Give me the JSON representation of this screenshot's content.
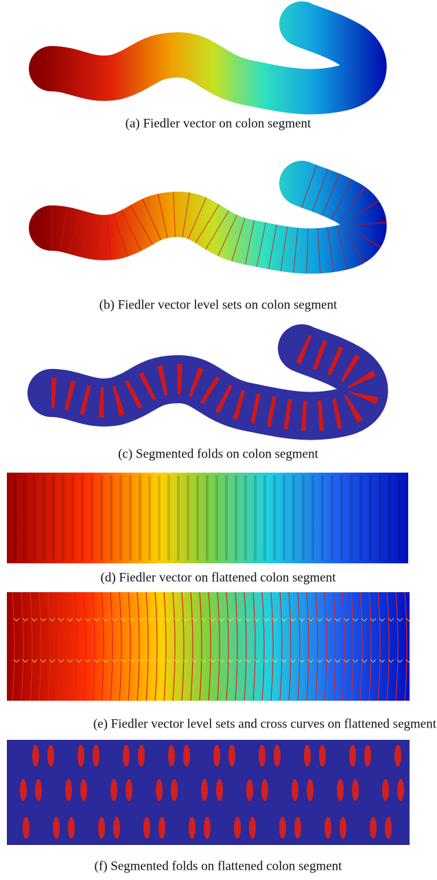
{
  "figure": {
    "captions": [
      "(a) Fiedler vector on colon segment",
      "(b) Fiedler vector level sets on colon segment",
      "(c) Segmented folds on colon segment",
      "(d) Fiedler vector on flattened colon segment",
      "(e) Fiedler vector level sets and cross curves on flattened segment",
      "(f) Segmented folds on flattened colon segment"
    ]
  }
}
